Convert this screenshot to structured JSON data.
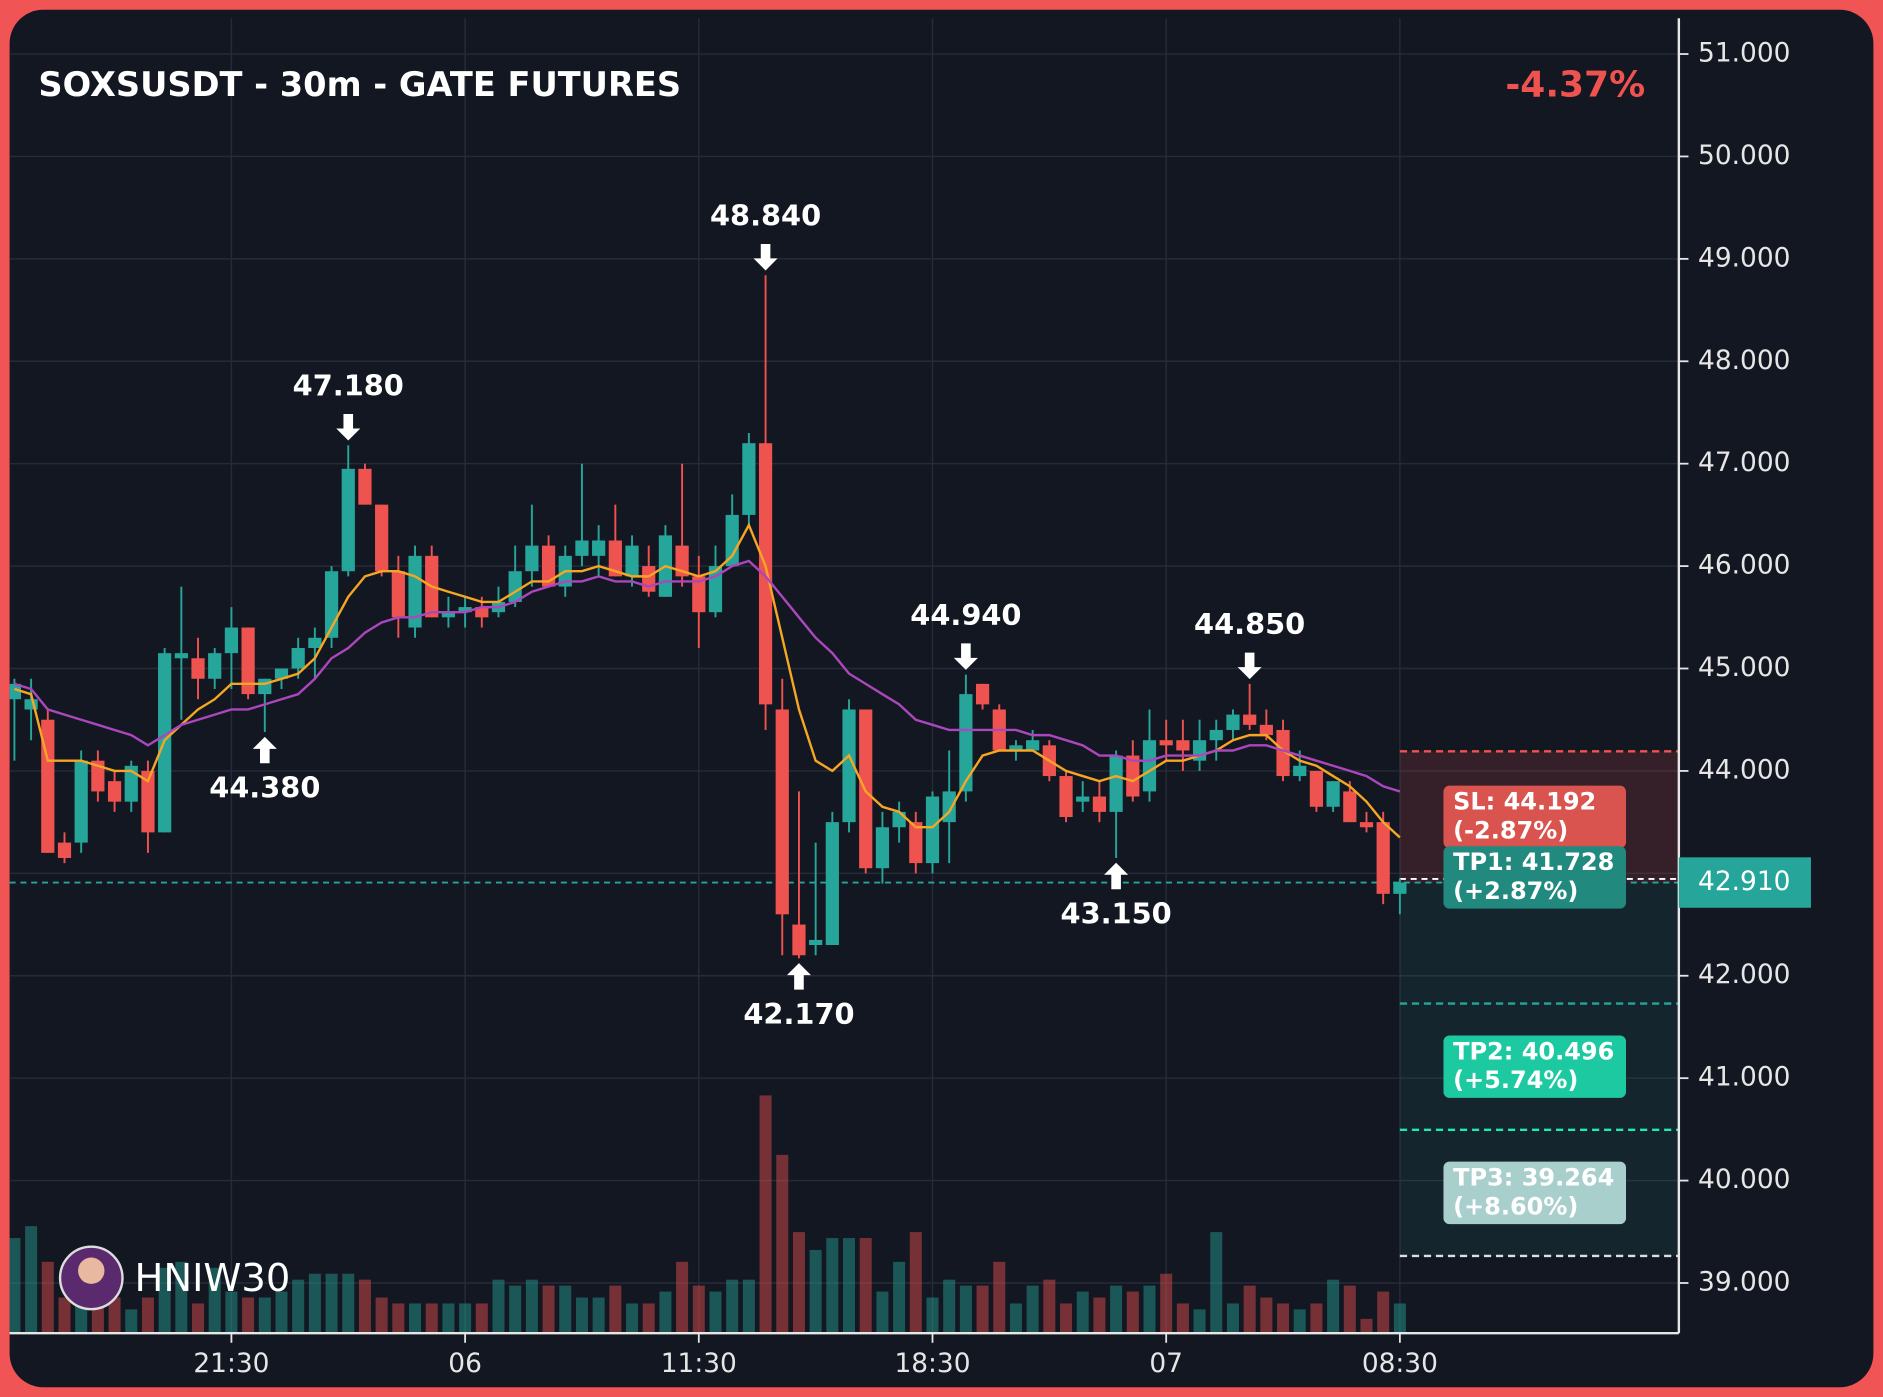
{
  "chart_data": {
    "type": "candlestick",
    "title": "SOXSUSDT - 30m - GATE FUTURES",
    "change": "-4.37%",
    "watermark": "HNIW30",
    "up_color": "#26a69a",
    "down_color": "#ef5350",
    "grid": true,
    "categories": [
      null,
      null,
      null,
      null,
      null,
      null,
      null,
      null,
      null,
      null,
      null,
      null,
      null,
      "21:30",
      null,
      null,
      null,
      null,
      null,
      null,
      null,
      null,
      null,
      null,
      null,
      null,
      null,
      "06",
      null,
      null,
      null,
      null,
      null,
      null,
      null,
      null,
      null,
      null,
      null,
      null,
      null,
      "11:30",
      null,
      null,
      null,
      null,
      null,
      null,
      null,
      null,
      null,
      null,
      null,
      null,
      null,
      "18:30",
      null,
      null,
      null,
      null,
      null,
      null,
      null,
      null,
      null,
      null,
      null,
      null,
      null,
      "07",
      null,
      null,
      null,
      null,
      null,
      null,
      null,
      null,
      null,
      null,
      null,
      null,
      null,
      "08:30"
    ],
    "open": [
      44.7,
      44.6,
      44.5,
      43.3,
      43.3,
      44.1,
      43.9,
      43.7,
      44.0,
      43.4,
      45.1,
      45.1,
      44.9,
      45.15,
      45.4,
      44.75,
      44.9,
      45.0,
      45.2,
      45.3,
      45.95,
      46.95,
      46.6,
      45.95,
      45.4,
      46.1,
      45.5,
      45.55,
      45.6,
      45.55,
      45.65,
      45.95,
      46.2,
      45.8,
      46.1,
      46.1,
      46.25,
      45.9,
      46.0,
      45.7,
      46.2,
      45.9,
      45.55,
      46.0,
      46.5,
      47.2,
      44.6,
      42.5,
      42.3,
      42.3,
      43.5,
      44.6,
      43.05,
      43.45,
      43.5,
      43.1,
      43.5,
      43.8,
      44.85,
      44.6,
      44.2,
      44.2,
      44.25,
      43.95,
      43.7,
      43.75,
      43.6,
      44.15,
      43.8,
      44.3,
      44.3,
      44.1,
      44.3,
      44.4,
      44.55,
      44.45,
      44.4,
      43.95,
      44.0,
      43.65,
      43.8,
      43.5,
      43.5,
      42.8
    ],
    "high": [
      44.9,
      44.9,
      44.6,
      43.4,
      44.2,
      44.2,
      44.0,
      44.1,
      44.1,
      45.2,
      45.8,
      45.3,
      45.2,
      45.6,
      45.4,
      44.9,
      45.0,
      45.3,
      45.4,
      46.0,
      47.18,
      47.0,
      46.6,
      46.1,
      46.2,
      46.2,
      45.7,
      45.7,
      45.7,
      45.8,
      46.2,
      46.6,
      46.3,
      46.2,
      47.0,
      46.4,
      46.6,
      46.3,
      46.2,
      46.4,
      47.0,
      46.1,
      46.2,
      46.7,
      47.3,
      48.84,
      44.9,
      43.8,
      43.3,
      43.6,
      44.7,
      44.6,
      43.6,
      43.7,
      43.6,
      43.8,
      44.2,
      44.94,
      44.85,
      44.65,
      44.3,
      44.4,
      44.3,
      44.0,
      43.9,
      43.9,
      44.2,
      44.3,
      44.6,
      44.5,
      44.5,
      44.5,
      44.5,
      44.6,
      44.85,
      44.6,
      44.5,
      44.2,
      44.0,
      43.9,
      43.9,
      43.6,
      43.6,
      42.95
    ],
    "low": [
      44.1,
      44.3,
      43.2,
      43.1,
      43.2,
      43.7,
      43.6,
      43.6,
      43.2,
      43.4,
      44.5,
      44.7,
      44.8,
      44.8,
      44.7,
      44.38,
      44.8,
      44.9,
      44.9,
      45.2,
      45.9,
      46.6,
      45.9,
      45.3,
      45.3,
      45.5,
      45.4,
      45.4,
      45.4,
      45.5,
      45.6,
      45.8,
      45.8,
      45.7,
      46.0,
      45.9,
      45.9,
      45.8,
      45.7,
      45.7,
      45.8,
      45.2,
      45.5,
      46.0,
      46.4,
      44.4,
      42.2,
      42.17,
      42.2,
      42.3,
      43.4,
      43.0,
      42.9,
      43.3,
      43.0,
      43.0,
      43.1,
      43.7,
      44.6,
      44.2,
      44.1,
      44.2,
      43.9,
      43.5,
      43.6,
      43.5,
      43.15,
      43.7,
      43.7,
      44.1,
      44.0,
      44.0,
      44.1,
      44.3,
      44.4,
      44.3,
      43.9,
      43.9,
      43.6,
      43.6,
      43.5,
      43.4,
      42.7,
      42.6
    ],
    "close": [
      44.85,
      44.7,
      43.2,
      43.15,
      44.1,
      43.8,
      43.7,
      44.05,
      43.4,
      45.15,
      45.15,
      44.9,
      45.15,
      45.4,
      44.75,
      44.9,
      45.0,
      45.2,
      45.3,
      45.95,
      46.95,
      46.6,
      45.95,
      45.5,
      46.1,
      45.5,
      45.55,
      45.6,
      45.5,
      45.65,
      45.95,
      46.2,
      45.8,
      46.1,
      46.25,
      46.25,
      45.9,
      46.2,
      45.75,
      46.3,
      45.9,
      45.55,
      46.0,
      46.5,
      47.2,
      44.65,
      42.6,
      42.2,
      42.35,
      43.5,
      44.6,
      43.05,
      43.45,
      43.6,
      43.1,
      43.75,
      43.8,
      44.75,
      44.65,
      44.2,
      44.25,
      44.3,
      43.95,
      43.55,
      43.75,
      43.6,
      44.15,
      43.75,
      44.3,
      44.25,
      44.2,
      44.3,
      44.4,
      44.55,
      44.45,
      44.35,
      43.95,
      44.05,
      43.65,
      43.9,
      43.5,
      43.45,
      42.8,
      42.91
    ],
    "volume": [
      80,
      90,
      60,
      30,
      35,
      25,
      30,
      20,
      30,
      55,
      60,
      25,
      55,
      35,
      30,
      30,
      35,
      45,
      50,
      50,
      50,
      45,
      30,
      25,
      25,
      25,
      25,
      25,
      25,
      45,
      40,
      45,
      40,
      40,
      30,
      30,
      40,
      25,
      25,
      35,
      60,
      40,
      35,
      45,
      45,
      200,
      150,
      85,
      70,
      80,
      80,
      80,
      35,
      60,
      85,
      30,
      45,
      40,
      40,
      60,
      25,
      40,
      45,
      25,
      35,
      30,
      40,
      35,
      40,
      50,
      25,
      20,
      85,
      25,
      40,
      30,
      25,
      20,
      25,
      45,
      40,
      12,
      35,
      25
    ],
    "lines": [
      {
        "color": "#f5a623",
        "values": [
          44.8,
          44.75,
          44.1,
          44.1,
          44.1,
          44.05,
          44.0,
          44.0,
          43.9,
          44.3,
          44.45,
          44.6,
          44.7,
          44.85,
          44.85,
          44.85,
          44.9,
          44.95,
          45.1,
          45.4,
          45.7,
          45.9,
          45.95,
          45.95,
          45.9,
          45.8,
          45.75,
          45.7,
          45.65,
          45.65,
          45.75,
          45.85,
          45.85,
          45.95,
          45.95,
          46.0,
          45.95,
          45.9,
          45.9,
          46.0,
          45.95,
          45.9,
          45.95,
          46.1,
          46.4,
          46.0,
          45.3,
          44.6,
          44.1,
          44.0,
          44.15,
          43.8,
          43.65,
          43.6,
          43.45,
          43.45,
          43.6,
          43.9,
          44.15,
          44.2,
          44.2,
          44.2,
          44.1,
          44.0,
          43.95,
          43.9,
          43.95,
          43.9,
          44.0,
          44.1,
          44.1,
          44.15,
          44.2,
          44.3,
          44.35,
          44.35,
          44.2,
          44.1,
          44.05,
          43.95,
          43.85,
          43.7,
          43.5,
          43.35
        ]
      },
      {
        "color": "#ab47bc",
        "values": [
          44.85,
          44.8,
          44.6,
          44.55,
          44.5,
          44.45,
          44.4,
          44.35,
          44.25,
          44.35,
          44.45,
          44.5,
          44.55,
          44.6,
          44.6,
          44.65,
          44.7,
          44.75,
          44.9,
          45.1,
          45.2,
          45.35,
          45.45,
          45.5,
          45.5,
          45.55,
          45.55,
          45.55,
          45.6,
          45.6,
          45.65,
          45.75,
          45.8,
          45.85,
          45.85,
          45.9,
          45.85,
          45.85,
          45.8,
          45.85,
          45.85,
          45.85,
          45.9,
          46.0,
          46.05,
          45.9,
          45.7,
          45.5,
          45.3,
          45.15,
          44.95,
          44.85,
          44.75,
          44.65,
          44.5,
          44.45,
          44.4,
          44.4,
          44.4,
          44.4,
          44.4,
          44.35,
          44.35,
          44.3,
          44.25,
          44.15,
          44.15,
          44.1,
          44.1,
          44.15,
          44.15,
          44.15,
          44.2,
          44.2,
          44.25,
          44.25,
          44.2,
          44.15,
          44.1,
          44.05,
          44.0,
          43.95,
          43.85,
          43.8
        ]
      }
    ],
    "ylim": [
      38.51,
      51.35
    ],
    "yticks": [
      {
        "value": 39,
        "label": "39.000"
      },
      {
        "value": 40,
        "label": "40.000"
      },
      {
        "value": 41,
        "label": "41.000"
      },
      {
        "value": 42,
        "label": "42.000"
      },
      {
        "value": 43,
        "label": "43.000"
      },
      {
        "value": 44,
        "label": "44.000"
      },
      {
        "value": 45,
        "label": "45.000"
      },
      {
        "value": 46,
        "label": "46.000"
      },
      {
        "value": 47,
        "label": "47.000"
      },
      {
        "value": 48,
        "label": "48.000"
      },
      {
        "value": 49,
        "label": "49.000"
      },
      {
        "value": 50,
        "label": "50.000"
      },
      {
        "value": 51,
        "label": "51.000"
      }
    ],
    "last_price": {
      "value": 42.91,
      "label": "42.910"
    },
    "annotations": [
      {
        "index": 20,
        "direction": "down",
        "value": 47.18,
        "label": "47.180"
      },
      {
        "index": 15,
        "direction": "up",
        "value": 44.38,
        "label": "44.380"
      },
      {
        "index": 45,
        "direction": "down",
        "value": 48.84,
        "label": "48.840"
      },
      {
        "index": 47,
        "direction": "up",
        "value": 42.17,
        "label": "42.170"
      },
      {
        "index": 57,
        "direction": "down",
        "value": 44.94,
        "label": "44.940"
      },
      {
        "index": 66,
        "direction": "up",
        "value": 43.15,
        "label": "43.150"
      },
      {
        "index": 74,
        "direction": "down",
        "value": 44.85,
        "label": "44.850"
      }
    ],
    "levels": [
      {
        "value": 44.192,
        "label": "SL: 44.192",
        "change": "(-2.87%)",
        "color": "#d9534f",
        "line_color": "#ef5350"
      },
      {
        "value": 41.728,
        "label": "TP1: 41.728",
        "change": "(+2.87%)",
        "color": "#21897e",
        "line_color": "#26a69a"
      },
      {
        "value": 40.496,
        "label": "TP2: 40.496",
        "change": "(+5.74%)",
        "color": "#1cc9a0",
        "line_color": "#1de9b6"
      },
      {
        "value": 39.264,
        "label": "TP3: 39.264",
        "change": "(+8.60%)",
        "color": "#a9cfcd",
        "line_color": "#d8e0e0"
      }
    ]
  }
}
